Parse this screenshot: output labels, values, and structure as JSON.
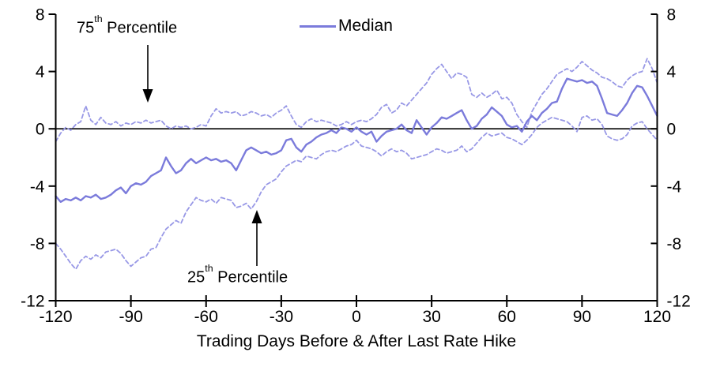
{
  "figure": {
    "annotations": {
      "p75": {
        "num": "75",
        "sup": "th",
        "rest": " Percentile"
      },
      "p25": {
        "num": "25",
        "sup": "th",
        "rest": " Percentile"
      }
    }
  },
  "chart_data": {
    "type": "line",
    "title": "",
    "xlabel": "Trading Days Before & After Last Rate Hike",
    "ylabel": "",
    "xlim": [
      -120,
      120
    ],
    "ylim": [
      -12,
      8
    ],
    "xticks": [
      -120,
      -90,
      -60,
      -30,
      0,
      30,
      60,
      90,
      120
    ],
    "yticks": [
      8,
      4,
      0,
      -4,
      -8,
      -12
    ],
    "grid": false,
    "zero_line": true,
    "legend_position": "top-center",
    "axis_color": "#000000",
    "x": [
      -120,
      -118,
      -116,
      -114,
      -112,
      -110,
      -108,
      -106,
      -104,
      -102,
      -100,
      -98,
      -96,
      -94,
      -92,
      -90,
      -88,
      -86,
      -84,
      -82,
      -80,
      -78,
      -76,
      -74,
      -72,
      -70,
      -68,
      -66,
      -64,
      -62,
      -60,
      -58,
      -56,
      -54,
      -52,
      -50,
      -48,
      -46,
      -44,
      -42,
      -40,
      -38,
      -36,
      -34,
      -32,
      -30,
      -28,
      -26,
      -24,
      -22,
      -20,
      -18,
      -16,
      -14,
      -12,
      -10,
      -8,
      -6,
      -4,
      -2,
      0,
      2,
      4,
      6,
      8,
      10,
      12,
      14,
      16,
      18,
      20,
      22,
      24,
      26,
      28,
      30,
      32,
      34,
      36,
      38,
      40,
      42,
      44,
      46,
      48,
      50,
      52,
      54,
      56,
      58,
      60,
      62,
      64,
      66,
      68,
      70,
      72,
      74,
      76,
      78,
      80,
      82,
      84,
      86,
      88,
      90,
      92,
      94,
      96,
      98,
      100,
      102,
      104,
      106,
      108,
      110,
      112,
      114,
      116,
      118,
      120
    ],
    "series": [
      {
        "name": "Median",
        "style": "solid",
        "color": "#7B7BDB",
        "values": [
          -4.7,
          -5.1,
          -4.9,
          -5.0,
          -4.8,
          -5.0,
          -4.7,
          -4.8,
          -4.6,
          -4.9,
          -4.8,
          -4.6,
          -4.3,
          -4.1,
          -4.5,
          -4.0,
          -3.8,
          -3.9,
          -3.7,
          -3.3,
          -3.1,
          -2.9,
          -2.0,
          -2.6,
          -3.1,
          -2.9,
          -2.4,
          -2.1,
          -2.4,
          -2.2,
          -2.0,
          -2.2,
          -2.1,
          -2.3,
          -2.2,
          -2.4,
          -2.9,
          -2.2,
          -1.5,
          -1.3,
          -1.5,
          -1.7,
          -1.6,
          -1.8,
          -1.7,
          -1.5,
          -0.8,
          -0.7,
          -1.3,
          -1.6,
          -1.1,
          -0.9,
          -0.6,
          -0.4,
          -0.3,
          -0.1,
          -0.3,
          0.1,
          0.0,
          -0.2,
          0.1,
          -0.2,
          -0.4,
          -0.2,
          -0.9,
          -0.5,
          -0.2,
          -0.1,
          0.0,
          0.3,
          -0.1,
          -0.3,
          0.6,
          0.1,
          -0.4,
          0.1,
          0.4,
          0.8,
          0.7,
          0.9,
          1.1,
          1.3,
          0.6,
          0.0,
          0.2,
          0.7,
          1.0,
          1.5,
          1.2,
          0.9,
          0.3,
          0.1,
          0.2,
          -0.2,
          0.5,
          0.9,
          0.6,
          1.1,
          1.4,
          1.8,
          1.9,
          2.8,
          3.5,
          3.4,
          3.3,
          3.4,
          3.2,
          3.3,
          3.0,
          2.1,
          1.1,
          1.0,
          0.9,
          1.3,
          1.8,
          2.5,
          3.0,
          2.9,
          2.3,
          1.6,
          0.9
        ]
      },
      {
        "name": "75th Percentile",
        "style": "dashed",
        "color": "#9898E6",
        "values": [
          -0.9,
          -0.3,
          0.1,
          -0.1,
          0.3,
          0.5,
          1.6,
          0.6,
          0.3,
          0.8,
          0.4,
          0.3,
          0.5,
          0.2,
          0.4,
          0.3,
          0.5,
          0.4,
          0.6,
          0.4,
          0.5,
          0.6,
          0.2,
          0.0,
          0.2,
          0.1,
          0.2,
          0.0,
          0.1,
          0.3,
          0.2,
          0.9,
          1.4,
          1.1,
          1.2,
          1.1,
          1.2,
          0.9,
          1.0,
          1.2,
          1.1,
          0.9,
          1.0,
          0.8,
          1.1,
          1.3,
          1.6,
          0.9,
          0.3,
          0.1,
          0.5,
          0.7,
          0.5,
          0.6,
          0.5,
          0.4,
          0.2,
          0.3,
          0.5,
          0.3,
          0.5,
          0.6,
          0.5,
          0.7,
          1.0,
          1.5,
          1.7,
          1.1,
          1.3,
          1.8,
          1.6,
          2.0,
          2.4,
          2.8,
          3.2,
          3.8,
          4.2,
          4.5,
          4.0,
          3.5,
          3.9,
          3.8,
          3.6,
          2.4,
          2.2,
          2.5,
          2.2,
          2.4,
          2.7,
          2.1,
          2.2,
          1.8,
          1.0,
          0.5,
          0.1,
          1.2,
          1.8,
          2.4,
          2.8,
          3.3,
          3.8,
          4.0,
          4.2,
          4.0,
          4.3,
          4.7,
          4.4,
          4.1,
          3.9,
          3.6,
          3.5,
          3.3,
          3.0,
          2.9,
          3.4,
          3.7,
          3.9,
          4.0,
          4.9,
          4.2,
          3.2
        ]
      },
      {
        "name": "25th Percentile",
        "style": "dashed",
        "color": "#9898E6",
        "values": [
          -8.0,
          -8.4,
          -8.9,
          -9.4,
          -9.8,
          -9.2,
          -8.9,
          -9.1,
          -8.8,
          -9.0,
          -8.6,
          -8.5,
          -8.4,
          -8.7,
          -9.2,
          -9.6,
          -9.3,
          -9.0,
          -8.9,
          -8.4,
          -8.3,
          -7.6,
          -7.0,
          -6.7,
          -6.4,
          -6.6,
          -5.8,
          -5.3,
          -4.8,
          -5.0,
          -5.1,
          -4.9,
          -5.2,
          -4.8,
          -4.9,
          -5.0,
          -5.5,
          -5.4,
          -5.2,
          -5.6,
          -5.1,
          -4.4,
          -3.9,
          -3.7,
          -3.5,
          -3.0,
          -2.6,
          -2.4,
          -2.2,
          -2.3,
          -1.9,
          -2.0,
          -2.1,
          -1.8,
          -1.6,
          -1.5,
          -1.6,
          -1.4,
          -1.2,
          -1.1,
          -0.8,
          -1.2,
          -1.3,
          -1.4,
          -1.6,
          -1.9,
          -1.6,
          -1.4,
          -1.6,
          -1.5,
          -1.7,
          -2.1,
          -2.0,
          -1.9,
          -1.8,
          -1.6,
          -1.4,
          -1.5,
          -1.7,
          -1.6,
          -1.5,
          -1.2,
          -1.6,
          -1.4,
          -1.0,
          -0.6,
          -0.3,
          -0.5,
          -0.4,
          -0.3,
          -0.6,
          -0.7,
          -0.9,
          -1.1,
          -0.8,
          -0.4,
          0.1,
          0.4,
          0.6,
          0.8,
          0.7,
          0.6,
          0.5,
          0.2,
          -0.2,
          0.8,
          0.9,
          0.6,
          0.7,
          0.3,
          -0.5,
          -0.7,
          -0.8,
          -0.7,
          -0.4,
          0.2,
          0.4,
          0.5,
          0.0,
          -0.4,
          -0.8
        ]
      }
    ]
  }
}
